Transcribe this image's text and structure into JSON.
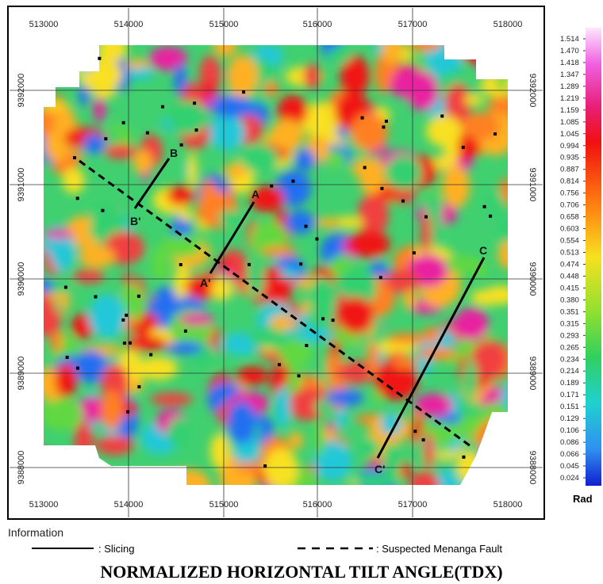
{
  "map": {
    "title": "NORMALIZED HORIZONTAL TILT ANGLE(TDX)",
    "x_labels": [
      "513000",
      "514000",
      "515000",
      "516000",
      "517000",
      "518000"
    ],
    "y_labels": [
      "9392000",
      "9391000",
      "9390000",
      "9389000",
      "9388000"
    ],
    "profiles": [
      "A",
      "A'",
      "B",
      "B'",
      "C",
      "C'"
    ],
    "colorbar": {
      "unit": "Rad",
      "labels": [
        "1.514",
        "1.470",
        "1.418",
        "1.347",
        "1.289",
        "1.219",
        "1.159",
        "1.085",
        "1.045",
        "0.994",
        "0.935",
        "0.887",
        "0.814",
        "0.756",
        "0.706",
        "0.658",
        "0.603",
        "0.554",
        "0.513",
        "0.474",
        "0.448",
        "0.415",
        "0.380",
        "0.351",
        "0.315",
        "0.293",
        "0.265",
        "0.234",
        "0.214",
        "0.189",
        "0.171",
        "0.151",
        "0.129",
        "0.106",
        "0.086",
        "0.066",
        "0.045",
        "0.024"
      ]
    },
    "legend": {
      "heading": "Information",
      "slicing": ": Slicing",
      "fault": ": Suspected Menanga Fault"
    }
  }
}
